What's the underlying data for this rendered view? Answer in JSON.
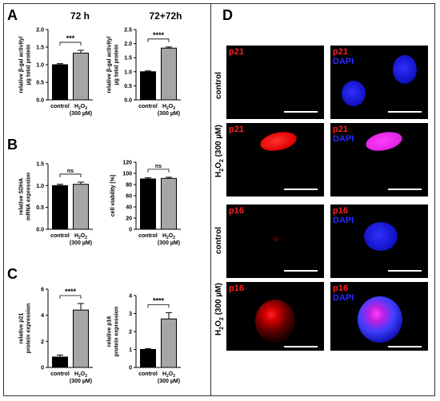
{
  "panel_letters": [
    "A",
    "B",
    "C",
    "D"
  ],
  "column_titles": [
    "72 h",
    "72+72h"
  ],
  "chart_data": [
    {
      "id": "A1",
      "type": "bar",
      "categories": [
        "control",
        "H2O2 (300 µM)"
      ],
      "values": [
        1.0,
        1.33
      ],
      "errors": [
        0.03,
        0.08
      ],
      "ylabel_lines": [
        "relative β-gal activity/",
        "µg total protein"
      ],
      "ylim": [
        0,
        2.0
      ],
      "yticks": [
        "0.0",
        "0.5",
        "1.0",
        "1.5",
        "2.0"
      ],
      "significance": "***"
    },
    {
      "id": "A2",
      "type": "bar",
      "categories": [
        "control",
        "H2O2 (300 µM)"
      ],
      "values": [
        1.0,
        1.84
      ],
      "errors": [
        0.03,
        0.04
      ],
      "ylabel_lines": [
        "relative β-gal activity/",
        "µg total protein"
      ],
      "ylim": [
        0,
        2.5
      ],
      "yticks": [
        "0.0",
        "0.5",
        "1.0",
        "1.5",
        "2.0",
        "2.5"
      ],
      "significance": "****"
    },
    {
      "id": "B1",
      "type": "bar",
      "categories": [
        "control",
        "H2O2 (300 µM)"
      ],
      "values": [
        1.0,
        1.03
      ],
      "errors": [
        0.03,
        0.05
      ],
      "ylabel_lines": [
        "relative SDHA",
        "mRNA expression"
      ],
      "ylim": [
        0,
        1.5
      ],
      "yticks": [
        "0.0",
        "0.5",
        "1.0",
        "1.5"
      ],
      "significance": "ns"
    },
    {
      "id": "B2",
      "type": "bar",
      "categories": [
        "control",
        "H2O2 (300 µM)"
      ],
      "values": [
        90,
        91
      ],
      "errors": [
        2,
        2
      ],
      "ylabel_lines": [
        "cell viability [%]"
      ],
      "ylim": [
        0,
        120
      ],
      "yticks": [
        "0",
        "20",
        "40",
        "60",
        "80",
        "100",
        "120"
      ],
      "significance": "ns"
    },
    {
      "id": "C1",
      "type": "bar",
      "categories": [
        "control",
        "H2O2 (300 µM)"
      ],
      "values": [
        0.8,
        4.4
      ],
      "errors": [
        0.15,
        0.5
      ],
      "ylabel_lines": [
        "relative p21",
        "protein expression"
      ],
      "ylim": [
        0,
        6
      ],
      "yticks": [
        "0",
        "2",
        "4",
        "6"
      ],
      "significance": "****"
    },
    {
      "id": "C2",
      "type": "bar",
      "categories": [
        "control",
        "H2O2 (300 µM)"
      ],
      "values": [
        1.0,
        2.7
      ],
      "errors": [
        0.05,
        0.35
      ],
      "ylabel_lines": [
        "relative p16",
        "protein expression"
      ],
      "ylim": [
        0,
        4
      ],
      "yticks": [
        "0",
        "1",
        "2",
        "3",
        "4"
      ],
      "significance": "****"
    }
  ],
  "microscopy": {
    "row_labels": [
      "control",
      "H2O2 (300 µM)",
      "control",
      "H2O2 (300 µM)"
    ],
    "panels": [
      {
        "marker": "p21",
        "dapi": ""
      },
      {
        "marker": "p21",
        "dapi": "DAPI"
      },
      {
        "marker": "p21",
        "dapi": ""
      },
      {
        "marker": "p21",
        "dapi": "DAPI"
      },
      {
        "marker": "p16",
        "dapi": ""
      },
      {
        "marker": "p16",
        "dapi": "DAPI"
      },
      {
        "marker": "p16",
        "dapi": ""
      },
      {
        "marker": "p16",
        "dapi": "DAPI"
      }
    ]
  },
  "colors": {
    "control_bar": "#000000",
    "treated_bar": "#a6a6a6",
    "marker_text": "#ff0000",
    "dapi_text": "#1a1aff"
  }
}
